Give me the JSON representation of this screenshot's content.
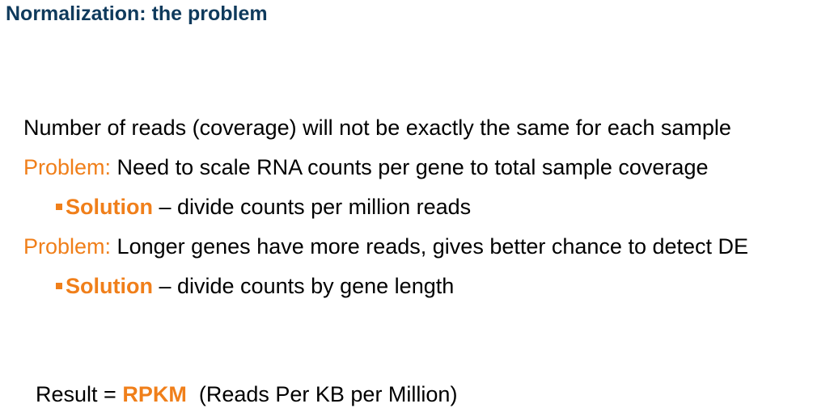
{
  "title": "Normalization: the problem",
  "lines": {
    "coverage": "Number of reads (coverage) will not be exactly the same for each sample",
    "problem1": {
      "label": "Problem:",
      "text": " Need to scale RNA counts per gene to total sample coverage"
    },
    "solution1": {
      "label": "Solution",
      "text": " – divide counts per million reads"
    },
    "problem2": {
      "label": "Problem:",
      "text": " Longer genes have more reads, gives better chance to detect DE"
    },
    "solution2": {
      "label": "Solution",
      "text": " – divide counts by gene length"
    },
    "result": {
      "prefix": "Result = ",
      "term": "RPKM",
      "suffix": "  (Reads Per KB per Million)"
    }
  },
  "colors": {
    "title": "#0f3a5c",
    "accent": "#f07f1a",
    "text": "#000000"
  },
  "icons": {
    "bullet": "square-bullet-icon"
  }
}
